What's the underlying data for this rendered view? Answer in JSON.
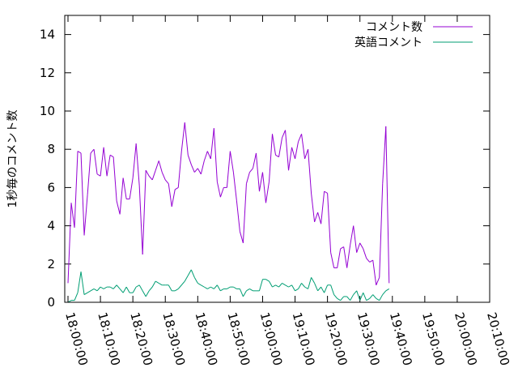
{
  "chart_data": {
    "type": "line",
    "title": "",
    "xlabel": "",
    "ylabel": "1秒毎のコメント数",
    "ylim": [
      0,
      15
    ],
    "yticks": [
      0,
      2,
      4,
      6,
      8,
      10,
      12,
      14
    ],
    "xlim": [
      "17:59:00",
      "20:10:00"
    ],
    "xticks": [
      "18:00:00",
      "18:10:00",
      "18:20:00",
      "18:30:00",
      "18:40:00",
      "18:50:00",
      "19:00:00",
      "19:10:00",
      "19:20:00",
      "19:30:00",
      "19:40:00",
      "19:50:00",
      "20:00:00",
      "20:10:00"
    ],
    "grid": false,
    "legend_position": "top-right",
    "series": [
      {
        "name": "コメント数",
        "color": "#9400d3",
        "points": [
          [
            "18:00:00",
            1.0
          ],
          [
            "18:01:00",
            5.2
          ],
          [
            "18:02:00",
            3.9
          ],
          [
            "18:03:00",
            7.9
          ],
          [
            "18:04:00",
            7.8
          ],
          [
            "18:05:00",
            3.5
          ],
          [
            "18:06:00",
            5.6
          ],
          [
            "18:07:00",
            7.8
          ],
          [
            "18:08:00",
            8.0
          ],
          [
            "18:09:00",
            6.7
          ],
          [
            "18:10:00",
            6.6
          ],
          [
            "18:11:00",
            8.1
          ],
          [
            "18:12:00",
            6.6
          ],
          [
            "18:13:00",
            7.7
          ],
          [
            "18:14:00",
            7.6
          ],
          [
            "18:15:00",
            5.3
          ],
          [
            "18:16:00",
            4.6
          ],
          [
            "18:17:00",
            6.5
          ],
          [
            "18:18:00",
            5.4
          ],
          [
            "18:19:00",
            5.4
          ],
          [
            "18:20:00",
            6.5
          ],
          [
            "18:21:00",
            8.3
          ],
          [
            "18:22:00",
            6.1
          ],
          [
            "18:23:00",
            2.5
          ],
          [
            "18:24:00",
            6.9
          ],
          [
            "18:25:00",
            6.6
          ],
          [
            "18:26:00",
            6.4
          ],
          [
            "18:27:00",
            6.9
          ],
          [
            "18:28:00",
            7.4
          ],
          [
            "18:29:00",
            6.8
          ],
          [
            "18:30:00",
            6.4
          ],
          [
            "18:31:00",
            6.2
          ],
          [
            "18:32:00",
            5.0
          ],
          [
            "18:33:00",
            5.9
          ],
          [
            "18:34:00",
            6.0
          ],
          [
            "18:35:00",
            7.9
          ],
          [
            "18:36:00",
            9.4
          ],
          [
            "18:37:00",
            7.7
          ],
          [
            "18:38:00",
            7.2
          ],
          [
            "18:39:00",
            6.8
          ],
          [
            "18:40:00",
            7.0
          ],
          [
            "18:41:00",
            6.7
          ],
          [
            "18:42:00",
            7.4
          ],
          [
            "18:43:00",
            7.9
          ],
          [
            "18:44:00",
            7.5
          ],
          [
            "18:45:00",
            9.1
          ],
          [
            "18:46:00",
            6.3
          ],
          [
            "18:47:00",
            5.5
          ],
          [
            "18:48:00",
            6.0
          ],
          [
            "18:49:00",
            6.0
          ],
          [
            "18:50:00",
            7.9
          ],
          [
            "18:51:00",
            6.8
          ],
          [
            "18:52:00",
            5.3
          ],
          [
            "18:53:00",
            3.7
          ],
          [
            "18:54:00",
            3.1
          ],
          [
            "18:55:00",
            6.2
          ],
          [
            "18:56:00",
            6.8
          ],
          [
            "18:57:00",
            7.0
          ],
          [
            "18:58:00",
            7.8
          ],
          [
            "18:59:00",
            5.8
          ],
          [
            "19:00:00",
            6.8
          ],
          [
            "19:01:00",
            5.2
          ],
          [
            "19:02:00",
            6.3
          ],
          [
            "19:03:00",
            8.8
          ],
          [
            "19:04:00",
            7.7
          ],
          [
            "19:05:00",
            7.6
          ],
          [
            "19:06:00",
            8.6
          ],
          [
            "19:07:00",
            9.0
          ],
          [
            "19:08:00",
            6.9
          ],
          [
            "19:09:00",
            8.1
          ],
          [
            "19:10:00",
            7.5
          ],
          [
            "19:11:00",
            8.4
          ],
          [
            "19:12:00",
            8.8
          ],
          [
            "19:13:00",
            7.5
          ],
          [
            "19:14:00",
            8.0
          ],
          [
            "19:15:00",
            5.7
          ],
          [
            "19:16:00",
            4.2
          ],
          [
            "19:17:00",
            4.7
          ],
          [
            "19:18:00",
            4.1
          ],
          [
            "19:19:00",
            5.8
          ],
          [
            "19:20:00",
            5.7
          ],
          [
            "19:21:00",
            2.6
          ],
          [
            "19:22:00",
            1.8
          ],
          [
            "19:23:00",
            1.8
          ],
          [
            "19:24:00",
            2.8
          ],
          [
            "19:25:00",
            2.9
          ],
          [
            "19:26:00",
            1.8
          ],
          [
            "19:27:00",
            3.0
          ],
          [
            "19:28:00",
            4.0
          ],
          [
            "19:29:00",
            2.6
          ],
          [
            "19:30:00",
            3.1
          ],
          [
            "19:31:00",
            2.8
          ],
          [
            "19:32:00",
            2.3
          ],
          [
            "19:33:00",
            2.1
          ],
          [
            "19:34:00",
            2.2
          ],
          [
            "19:35:00",
            0.9
          ],
          [
            "19:36:00",
            1.3
          ],
          [
            "19:37:00",
            6.2
          ],
          [
            "19:38:00",
            9.2
          ],
          [
            "19:39:00",
            1.0
          ]
        ]
      },
      {
        "name": "英語コメント",
        "color": "#009e73",
        "points": [
          [
            "18:00:00",
            0.0
          ],
          [
            "18:01:00",
            0.1
          ],
          [
            "18:02:00",
            0.1
          ],
          [
            "18:03:00",
            0.5
          ],
          [
            "18:04:00",
            1.6
          ],
          [
            "18:05:00",
            0.4
          ],
          [
            "18:06:00",
            0.5
          ],
          [
            "18:07:00",
            0.6
          ],
          [
            "18:08:00",
            0.7
          ],
          [
            "18:09:00",
            0.6
          ],
          [
            "18:10:00",
            0.8
          ],
          [
            "18:11:00",
            0.7
          ],
          [
            "18:12:00",
            0.8
          ],
          [
            "18:13:00",
            0.8
          ],
          [
            "18:14:00",
            0.7
          ],
          [
            "18:15:00",
            0.9
          ],
          [
            "18:16:00",
            0.7
          ],
          [
            "18:17:00",
            0.5
          ],
          [
            "18:18:00",
            0.8
          ],
          [
            "18:19:00",
            0.5
          ],
          [
            "18:20:00",
            0.5
          ],
          [
            "18:21:00",
            0.8
          ],
          [
            "18:22:00",
            0.9
          ],
          [
            "18:23:00",
            0.6
          ],
          [
            "18:24:00",
            0.3
          ],
          [
            "18:25:00",
            0.6
          ],
          [
            "18:26:00",
            0.8
          ],
          [
            "18:27:00",
            1.1
          ],
          [
            "18:28:00",
            1.0
          ],
          [
            "18:29:00",
            0.9
          ],
          [
            "18:30:00",
            0.9
          ],
          [
            "18:31:00",
            0.9
          ],
          [
            "18:32:00",
            0.6
          ],
          [
            "18:33:00",
            0.6
          ],
          [
            "18:34:00",
            0.7
          ],
          [
            "18:35:00",
            0.9
          ],
          [
            "18:36:00",
            1.1
          ],
          [
            "18:37:00",
            1.4
          ],
          [
            "18:38:00",
            1.7
          ],
          [
            "18:39:00",
            1.3
          ],
          [
            "18:40:00",
            1.0
          ],
          [
            "18:41:00",
            0.9
          ],
          [
            "18:42:00",
            0.8
          ],
          [
            "18:43:00",
            0.7
          ],
          [
            "18:44:00",
            0.8
          ],
          [
            "18:45:00",
            0.7
          ],
          [
            "18:46:00",
            0.9
          ],
          [
            "18:47:00",
            0.6
          ],
          [
            "18:48:00",
            0.7
          ],
          [
            "18:49:00",
            0.7
          ],
          [
            "18:50:00",
            0.8
          ],
          [
            "18:51:00",
            0.8
          ],
          [
            "18:52:00",
            0.7
          ],
          [
            "18:53:00",
            0.7
          ],
          [
            "18:54:00",
            0.3
          ],
          [
            "18:55:00",
            0.6
          ],
          [
            "18:56:00",
            0.7
          ],
          [
            "18:57:00",
            0.6
          ],
          [
            "18:58:00",
            0.6
          ],
          [
            "18:59:00",
            0.6
          ],
          [
            "19:00:00",
            1.2
          ],
          [
            "19:01:00",
            1.2
          ],
          [
            "19:02:00",
            1.1
          ],
          [
            "19:03:00",
            0.8
          ],
          [
            "19:04:00",
            0.9
          ],
          [
            "19:05:00",
            0.8
          ],
          [
            "19:06:00",
            1.0
          ],
          [
            "19:07:00",
            0.9
          ],
          [
            "19:08:00",
            0.8
          ],
          [
            "19:09:00",
            0.9
          ],
          [
            "19:10:00",
            0.6
          ],
          [
            "19:11:00",
            0.7
          ],
          [
            "19:12:00",
            1.0
          ],
          [
            "19:13:00",
            0.8
          ],
          [
            "19:14:00",
            0.7
          ],
          [
            "19:15:00",
            1.3
          ],
          [
            "19:16:00",
            1.0
          ],
          [
            "19:17:00",
            0.6
          ],
          [
            "19:18:00",
            0.8
          ],
          [
            "19:19:00",
            0.5
          ],
          [
            "19:20:00",
            0.9
          ],
          [
            "19:21:00",
            0.9
          ],
          [
            "19:22:00",
            0.4
          ],
          [
            "19:23:00",
            0.2
          ],
          [
            "19:24:00",
            0.1
          ],
          [
            "19:25:00",
            0.3
          ],
          [
            "19:26:00",
            0.3
          ],
          [
            "19:27:00",
            0.1
          ],
          [
            "19:28:00",
            0.4
          ],
          [
            "19:29:00",
            0.6
          ],
          [
            "19:30:00",
            0.1
          ],
          [
            "19:31:00",
            0.5
          ],
          [
            "19:32:00",
            0.1
          ],
          [
            "19:33:00",
            0.2
          ],
          [
            "19:34:00",
            0.4
          ],
          [
            "19:35:00",
            0.2
          ],
          [
            "19:36:00",
            0.1
          ],
          [
            "19:37:00",
            0.4
          ],
          [
            "19:38:00",
            0.6
          ],
          [
            "19:39:00",
            0.7
          ]
        ]
      }
    ]
  }
}
